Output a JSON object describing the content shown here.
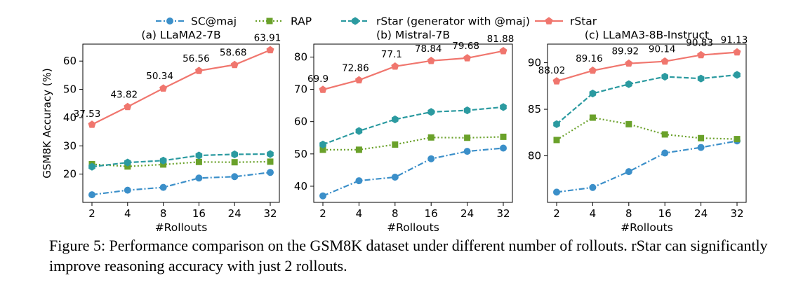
{
  "legend": [
    {
      "name": "SC@maj",
      "color": "#3b8fc9",
      "dash": "dashdot",
      "marker": "circle"
    },
    {
      "name": "RAP",
      "color": "#6aa12a",
      "dash": "dotted",
      "marker": "square"
    },
    {
      "name": "rStar (generator with @maj)",
      "color": "#2b9aa0",
      "dash": "dashed",
      "marker": "hexagon"
    },
    {
      "name": "rStar",
      "color": "#f0766e",
      "dash": "solid",
      "marker": "pentagon"
    }
  ],
  "chart_data": [
    {
      "type": "line",
      "title": "(a) LLaMA2-7B",
      "xlabel": "#Rollouts",
      "ylabel": "GSM8K Accuracy (%)",
      "categories": [
        "2",
        "4",
        "8",
        "16",
        "24",
        "32"
      ],
      "ylim": [
        10,
        66
      ],
      "yticks": [
        20,
        30,
        40,
        50,
        60
      ],
      "series": [
        {
          "name": "SC@maj",
          "values": [
            12.7,
            14.3,
            15.3,
            18.6,
            19.1,
            20.6
          ]
        },
        {
          "name": "RAP",
          "values": [
            23.5,
            22.7,
            23.4,
            24.3,
            24.2,
            24.4
          ]
        },
        {
          "name": "rStar (generator with @maj)",
          "values": [
            22.6,
            24.1,
            24.8,
            26.6,
            27.0,
            27.1
          ]
        },
        {
          "name": "rStar",
          "values": [
            37.53,
            43.82,
            50.34,
            56.56,
            58.68,
            63.91
          ],
          "labels": [
            "37.53",
            "43.82",
            "50.34",
            "56.56",
            "58.68",
            "63.91"
          ]
        }
      ]
    },
    {
      "type": "line",
      "title": "(b) Mistral-7B",
      "xlabel": "#Rollouts",
      "ylabel": "",
      "categories": [
        "2",
        "4",
        "8",
        "16",
        "24",
        "32"
      ],
      "ylim": [
        35,
        84
      ],
      "yticks": [
        40,
        50,
        60,
        70,
        80
      ],
      "series": [
        {
          "name": "SC@maj",
          "values": [
            37.0,
            41.7,
            42.8,
            48.5,
            50.8,
            51.8
          ]
        },
        {
          "name": "RAP",
          "values": [
            51.3,
            51.3,
            52.9,
            55.1,
            55.0,
            55.3
          ]
        },
        {
          "name": "rStar (generator with @maj)",
          "values": [
            52.9,
            57.1,
            60.7,
            63.0,
            63.5,
            64.5
          ]
        },
        {
          "name": "rStar",
          "values": [
            69.9,
            72.86,
            77.1,
            78.84,
            79.68,
            81.88
          ],
          "labels": [
            "69.9",
            "72.86",
            "77.1",
            "78.84",
            "79.68",
            "81.88"
          ]
        }
      ]
    },
    {
      "type": "line",
      "title": "(c) LLaMA3-8B-Instruct",
      "xlabel": "#Rollouts",
      "ylabel": "",
      "categories": [
        "2",
        "4",
        "8",
        "16",
        "24",
        "32"
      ],
      "ylim": [
        75,
        92
      ],
      "yticks": [
        80,
        85,
        90
      ],
      "series": [
        {
          "name": "SC@maj",
          "values": [
            76.1,
            76.6,
            78.3,
            80.3,
            80.9,
            81.6
          ]
        },
        {
          "name": "RAP",
          "values": [
            81.7,
            84.1,
            83.4,
            82.3,
            81.9,
            81.8
          ]
        },
        {
          "name": "rStar (generator with @maj)",
          "values": [
            83.4,
            86.7,
            87.7,
            88.5,
            88.3,
            88.7
          ]
        },
        {
          "name": "rStar",
          "values": [
            88.02,
            89.16,
            89.92,
            90.14,
            90.83,
            91.13
          ],
          "labels": [
            "88.02",
            "89.16",
            "89.92",
            "90.14",
            "90.83",
            "91.13"
          ]
        }
      ]
    }
  ],
  "caption": "Figure 5: Performance comparison on the GSM8K dataset under different number of rollouts. rStar can significantly improve reasoning accuracy with just 2 rollouts."
}
